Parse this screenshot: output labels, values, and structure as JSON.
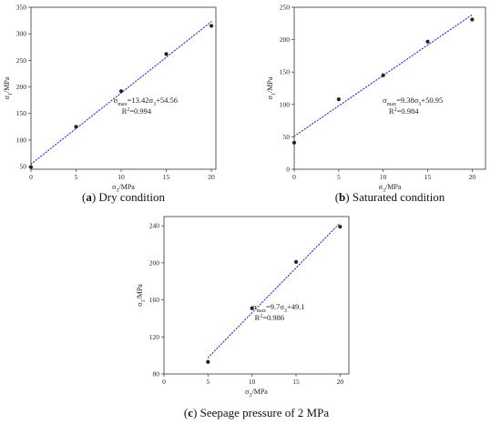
{
  "chart_data": [
    {
      "type": "scatter",
      "caption_letter": "a",
      "caption_text": "Dry condition",
      "xlabel": "σ3/MPa",
      "ylabel": "σ1/MPa",
      "xlim": [
        0,
        20.5
      ],
      "ylim": [
        45,
        350
      ],
      "xticks": [
        0,
        5,
        10,
        15,
        20
      ],
      "yticks": [
        50,
        100,
        150,
        200,
        250,
        300,
        350
      ],
      "x": [
        0,
        5,
        10,
        15,
        20
      ],
      "y": [
        49,
        125,
        192,
        262,
        315
      ],
      "fit": {
        "slope": 13.42,
        "intercept": 54.56
      },
      "equation": "σmax=13.42σ3+54.56",
      "r2": "R2=0.994"
    },
    {
      "type": "scatter",
      "caption_letter": "b",
      "caption_text": "Saturated condition",
      "xlabel": "σ3/MPa",
      "ylabel": "σ1/MPa",
      "xlim": [
        0,
        21.5
      ],
      "ylim": [
        0,
        250
      ],
      "xticks": [
        0,
        5,
        10,
        15,
        20
      ],
      "yticks": [
        0,
        50,
        100,
        150,
        200,
        250
      ],
      "x": [
        0,
        5,
        10,
        15,
        20
      ],
      "y": [
        41,
        108,
        145,
        197,
        231
      ],
      "fit": {
        "slope": 9.38,
        "intercept": 50.95
      },
      "equation": "σmax=9.38σ3+50.95",
      "r2": "R2=0.984"
    },
    {
      "type": "scatter",
      "caption_letter": "c",
      "caption_text": "Seepage pressure of 2 MPa",
      "xlabel": "σ3/MPa",
      "ylabel": "σ1/MPa",
      "xlim": [
        0,
        21
      ],
      "ylim": [
        80,
        250
      ],
      "xticks": [
        0,
        5,
        10,
        15,
        20
      ],
      "yticks": [
        80,
        120,
        160,
        200,
        240
      ],
      "x": [
        5,
        10,
        15,
        20
      ],
      "y": [
        93,
        151,
        201,
        239
      ],
      "fit": {
        "slope": 9.7,
        "intercept": 49.1
      },
      "equation": "σmax=9.7σ3+49.1",
      "r2": "R2=0.986"
    }
  ],
  "colors": {
    "fit_line": "#2a2acc",
    "points": "#222222",
    "axis": "#333333"
  }
}
